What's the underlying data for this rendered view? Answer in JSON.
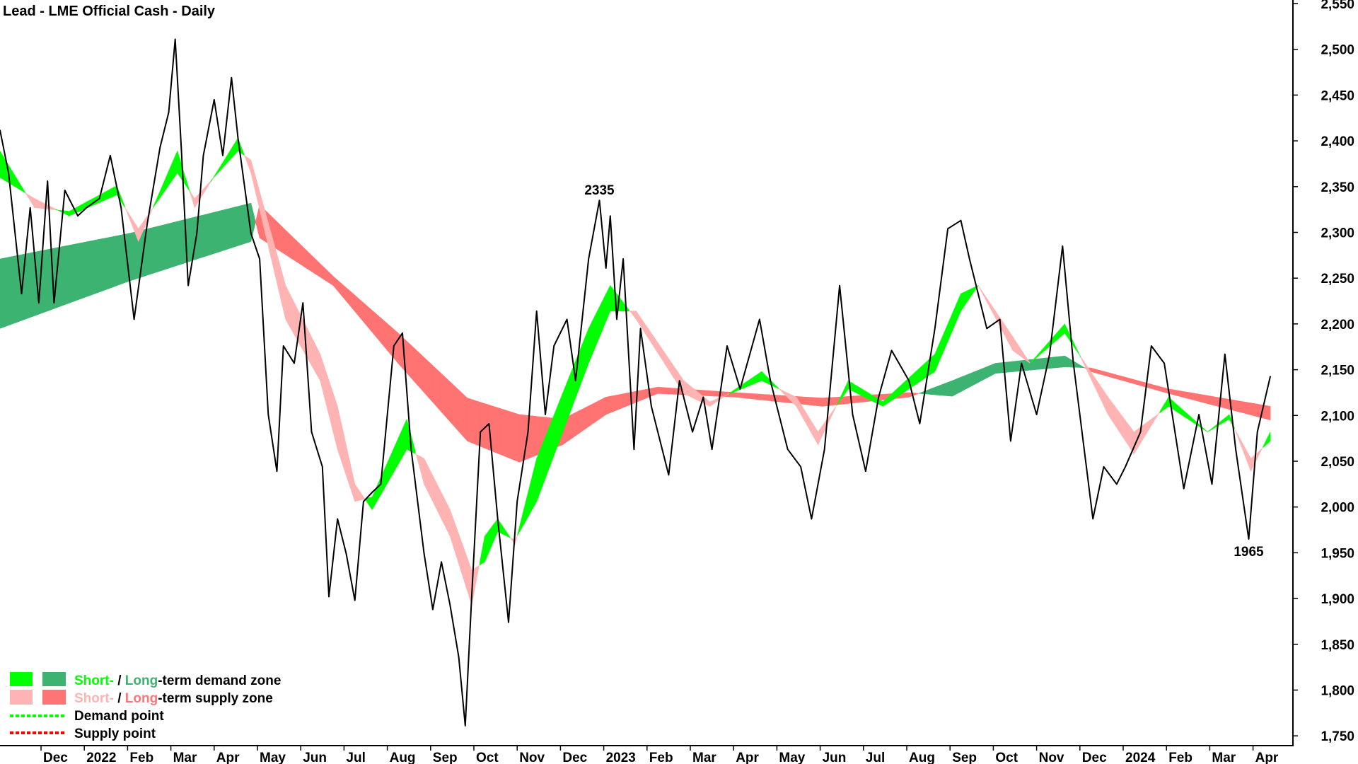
{
  "chart_data": {
    "type": "line",
    "title": "Lead - LME Official Cash - Daily",
    "xlabel": "",
    "ylabel": "",
    "x_unit": "months since Dec 2021",
    "ylim": [
      1750,
      2550
    ],
    "yticks": [
      1750,
      1800,
      1850,
      1900,
      1950,
      2000,
      2050,
      2100,
      2150,
      2200,
      2250,
      2300,
      2350,
      2400,
      2450,
      2500,
      2550
    ],
    "ytick_labels": [
      "1,750",
      "1,800",
      "1,850",
      "1,900",
      "1,950",
      "2,000",
      "2,050",
      "2,100",
      "2,150",
      "2,200",
      "2,250",
      "2,300",
      "2,350",
      "2,400",
      "2,450",
      "2,500",
      "2,550"
    ],
    "xlim": [
      -0.95,
      28.4
    ],
    "xtick_labels": [
      "Dec",
      "2022",
      "Feb",
      "Mar",
      "Apr",
      "May",
      "Jun",
      "Jul",
      "Aug",
      "Sep",
      "Oct",
      "Nov",
      "Dec",
      "2023",
      "Feb",
      "Mar",
      "Apr",
      "May",
      "Jun",
      "Jul",
      "Aug",
      "Sep",
      "Oct",
      "Nov",
      "Dec",
      "2024",
      "Feb",
      "Mar",
      "Apr"
    ],
    "grid": false,
    "colors": {
      "price": "#000000",
      "short_demand": "#00ff00",
      "long_demand": "#3cb371",
      "short_supply": "#ffb3b3",
      "long_supply": "#ff7373",
      "demand_point": "#00ff00",
      "supply_point": "#ff0000"
    },
    "price": [
      [
        -0.95,
        2412
      ],
      [
        -0.75,
        2365
      ],
      [
        -0.45,
        2233
      ],
      [
        -0.25,
        2327
      ],
      [
        -0.05,
        2223
      ],
      [
        0.15,
        2356
      ],
      [
        0.3,
        2223
      ],
      [
        0.55,
        2346
      ],
      [
        0.85,
        2318
      ],
      [
        1.05,
        2327
      ],
      [
        1.35,
        2337
      ],
      [
        1.6,
        2384
      ],
      [
        1.85,
        2327
      ],
      [
        2.15,
        2205
      ],
      [
        2.45,
        2308
      ],
      [
        2.75,
        2393
      ],
      [
        2.95,
        2431
      ],
      [
        3.1,
        2511
      ],
      [
        3.25,
        2384
      ],
      [
        3.4,
        2242
      ],
      [
        3.6,
        2299
      ],
      [
        3.75,
        2384
      ],
      [
        4.0,
        2445
      ],
      [
        4.2,
        2384
      ],
      [
        4.4,
        2469
      ],
      [
        4.55,
        2403
      ],
      [
        4.85,
        2299
      ],
      [
        5.05,
        2271
      ],
      [
        5.25,
        2101
      ],
      [
        5.45,
        2039
      ],
      [
        5.6,
        2176
      ],
      [
        5.85,
        2157
      ],
      [
        6.05,
        2223
      ],
      [
        6.25,
        2082
      ],
      [
        6.5,
        2044
      ],
      [
        6.65,
        1902
      ],
      [
        6.85,
        1987
      ],
      [
        7.05,
        1949
      ],
      [
        7.25,
        1898
      ],
      [
        7.45,
        2006
      ],
      [
        7.65,
        2016
      ],
      [
        7.85,
        2025
      ],
      [
        8.15,
        2176
      ],
      [
        8.35,
        2190
      ],
      [
        8.55,
        2063
      ],
      [
        8.85,
        1949
      ],
      [
        9.05,
        1888
      ],
      [
        9.25,
        1940
      ],
      [
        9.45,
        1893
      ],
      [
        9.65,
        1836
      ],
      [
        9.8,
        1761
      ],
      [
        9.95,
        1902
      ],
      [
        10.15,
        2082
      ],
      [
        10.35,
        2091
      ],
      [
        10.55,
        1987
      ],
      [
        10.8,
        1874
      ],
      [
        11.0,
        2006
      ],
      [
        11.25,
        2082
      ],
      [
        11.45,
        2214
      ],
      [
        11.65,
        2101
      ],
      [
        11.85,
        2176
      ],
      [
        12.15,
        2205
      ],
      [
        12.35,
        2138
      ],
      [
        12.65,
        2271
      ],
      [
        12.9,
        2335
      ],
      [
        13.05,
        2261
      ],
      [
        13.15,
        2318
      ],
      [
        13.3,
        2205
      ],
      [
        13.45,
        2271
      ],
      [
        13.7,
        2063
      ],
      [
        13.85,
        2195
      ],
      [
        14.1,
        2110
      ],
      [
        14.5,
        2035
      ],
      [
        14.75,
        2138
      ],
      [
        15.05,
        2082
      ],
      [
        15.3,
        2120
      ],
      [
        15.5,
        2063
      ],
      [
        15.85,
        2176
      ],
      [
        16.15,
        2129
      ],
      [
        16.6,
        2205
      ],
      [
        16.85,
        2138
      ],
      [
        17.25,
        2063
      ],
      [
        17.55,
        2044
      ],
      [
        17.8,
        1987
      ],
      [
        18.1,
        2063
      ],
      [
        18.45,
        2242
      ],
      [
        18.75,
        2101
      ],
      [
        19.05,
        2039
      ],
      [
        19.35,
        2120
      ],
      [
        19.65,
        2171
      ],
      [
        20.05,
        2138
      ],
      [
        20.3,
        2091
      ],
      [
        20.65,
        2195
      ],
      [
        20.95,
        2304
      ],
      [
        21.25,
        2313
      ],
      [
        21.45,
        2271
      ],
      [
        21.85,
        2195
      ],
      [
        22.15,
        2205
      ],
      [
        22.4,
        2072
      ],
      [
        22.65,
        2157
      ],
      [
        23.0,
        2101
      ],
      [
        23.3,
        2167
      ],
      [
        23.6,
        2285
      ],
      [
        23.85,
        2157
      ],
      [
        24.3,
        1987
      ],
      [
        24.55,
        2044
      ],
      [
        24.85,
        2025
      ],
      [
        25.05,
        2044
      ],
      [
        25.4,
        2082
      ],
      [
        25.65,
        2176
      ],
      [
        25.95,
        2157
      ],
      [
        26.4,
        2020
      ],
      [
        26.75,
        2101
      ],
      [
        27.05,
        2025
      ],
      [
        27.35,
        2167
      ],
      [
        27.6,
        2063
      ],
      [
        27.9,
        1965
      ],
      [
        28.1,
        2082
      ],
      [
        28.4,
        2143
      ]
    ],
    "short_term_zone": [
      [
        -0.95,
        2389,
        2360
      ],
      [
        -0.15,
        2327,
        2337
      ],
      [
        0.65,
        2323,
        2318
      ],
      [
        1.75,
        2351,
        2341
      ],
      [
        2.25,
        2290,
        2304
      ],
      [
        3.15,
        2389,
        2365
      ],
      [
        3.55,
        2327,
        2337
      ],
      [
        4.55,
        2403,
        2389
      ],
      [
        4.85,
        2365,
        2379
      ],
      [
        5.65,
        2205,
        2242
      ],
      [
        6.45,
        2138,
        2167
      ],
      [
        6.85,
        2063,
        2110
      ],
      [
        7.25,
        2006,
        2025
      ],
      [
        7.65,
        2011,
        1997
      ],
      [
        8.45,
        2096,
        2063
      ],
      [
        8.85,
        2025,
        2053
      ],
      [
        9.45,
        1968,
        1997
      ],
      [
        9.95,
        1893,
        1931
      ],
      [
        10.25,
        1968,
        1940
      ],
      [
        10.55,
        1987,
        1973
      ],
      [
        10.95,
        1959,
        1964
      ],
      [
        11.45,
        2053,
        2006
      ],
      [
        12.65,
        2195,
        2157
      ],
      [
        13.15,
        2242,
        2214
      ],
      [
        13.75,
        2205,
        2214
      ],
      [
        14.85,
        2124,
        2138
      ],
      [
        15.45,
        2110,
        2115
      ],
      [
        16.65,
        2148,
        2138
      ],
      [
        17.45,
        2110,
        2120
      ],
      [
        17.95,
        2068,
        2082
      ],
      [
        18.65,
        2138,
        2129
      ],
      [
        19.45,
        2115,
        2110
      ],
      [
        20.65,
        2167,
        2148
      ],
      [
        21.25,
        2233,
        2214
      ],
      [
        21.65,
        2242,
        2242
      ],
      [
        22.45,
        2171,
        2186
      ],
      [
        22.85,
        2157,
        2157
      ],
      [
        23.65,
        2200,
        2190
      ],
      [
        24.65,
        2101,
        2120
      ],
      [
        25.25,
        2058,
        2082
      ],
      [
        26.05,
        2120,
        2110
      ],
      [
        26.95,
        2082,
        2082
      ],
      [
        27.45,
        2101,
        2096
      ],
      [
        27.95,
        2039,
        2053
      ],
      [
        28.4,
        2082,
        2072
      ]
    ],
    "long_term_zone": [
      [
        -0.95,
        2271,
        2195
      ],
      [
        2.05,
        2299,
        2247
      ],
      [
        4.85,
        2332,
        2290
      ],
      [
        5.05,
        2294,
        2330
      ],
      [
        6.75,
        2242,
        2252
      ],
      [
        8.25,
        2157,
        2190
      ],
      [
        9.85,
        2072,
        2119
      ],
      [
        11.05,
        2049,
        2101
      ],
      [
        12.05,
        2068,
        2096
      ],
      [
        13.05,
        2101,
        2120
      ],
      [
        14.25,
        2124,
        2131
      ],
      [
        16.05,
        2120,
        2125
      ],
      [
        18.05,
        2110,
        2119
      ],
      [
        20.05,
        2120,
        2125
      ],
      [
        21.05,
        2138,
        2121
      ],
      [
        22.05,
        2157,
        2146
      ],
      [
        23.65,
        2165,
        2153
      ],
      [
        24.25,
        2148,
        2152
      ],
      [
        26.05,
        2124,
        2129
      ],
      [
        28.4,
        2095,
        2110
      ]
    ],
    "annotations": [
      {
        "text": "2335",
        "x": 12.9,
        "y": 2335,
        "pos": "above"
      },
      {
        "text": "1965",
        "x": 27.9,
        "y": 1965,
        "pos": "below"
      }
    ],
    "legend": {
      "placement": "bottom-left",
      "demand_zone": {
        "short": "Short-",
        "sep": " / ",
        "long": "Long",
        "rest": "-term demand zone"
      },
      "supply_zone": {
        "short": "Short-",
        "sep": " / ",
        "long": "Long",
        "rest": "-term supply zone"
      },
      "demand_point": "Demand point",
      "supply_point": "Supply point"
    }
  }
}
